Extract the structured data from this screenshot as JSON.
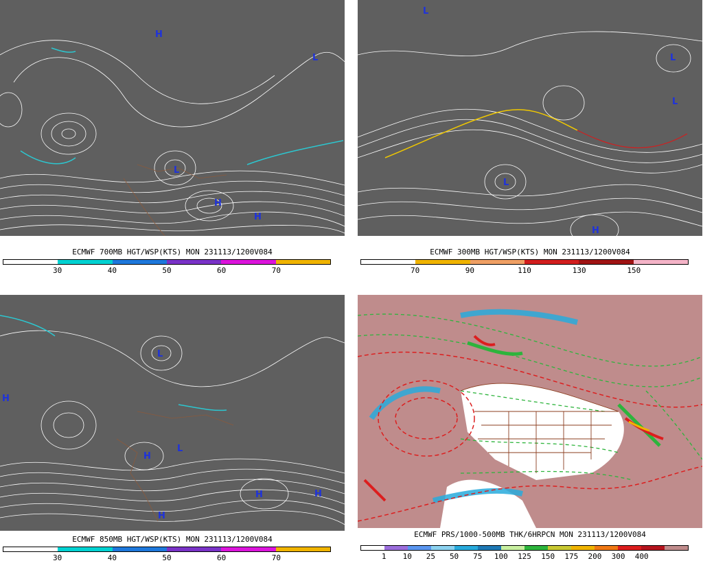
{
  "panels": [
    {
      "id": "700mb",
      "title": "ECMWF 700MB HGT/WSP(KTS) MON 231113/1200V084",
      "colorbar": {
        "colors": [
          "#ffffff",
          "#00d2d2",
          "#1e78dc",
          "#7a33c8",
          "#dc14dc",
          "#f0b400"
        ],
        "labels": [
          "30",
          "40",
          "50",
          "60",
          "70"
        ]
      }
    },
    {
      "id": "300mb",
      "title": "ECMWF 300MB HGT/WSP(KTS) MON 231113/1200V084",
      "colorbar": {
        "colors": [
          "#ffffff",
          "#f0b400",
          "#f0a064",
          "#d21e1e",
          "#a01414",
          "#f5b4c8"
        ],
        "labels": [
          "70",
          "90",
          "110",
          "130",
          "150"
        ]
      }
    },
    {
      "id": "850mb",
      "title": "ECMWF 850MB HGT/WSP(KTS) MON 231113/1200V084",
      "colorbar": {
        "colors": [
          "#ffffff",
          "#00d2d2",
          "#1e78dc",
          "#7a33c8",
          "#dc14dc",
          "#f0b400"
        ],
        "labels": [
          "30",
          "40",
          "50",
          "60",
          "70"
        ]
      }
    },
    {
      "id": "prcp",
      "title": "ECMWF PRS/1000-500MB THK/6HRPCN MON 231113/1200V084",
      "colorbar": {
        "colors": [
          "#ffffff",
          "#9b6edc",
          "#5a96f0",
          "#8cd2f0",
          "#28aadc",
          "#1e78b4",
          "#c8f0a0",
          "#2db43c",
          "#c8c832",
          "#f0b400",
          "#f07814",
          "#dc1e1e",
          "#b4141e",
          "#c08c8c"
        ],
        "labels": [
          "1",
          "10",
          "25",
          "50",
          "75",
          "100",
          "125",
          "150",
          "175",
          "200",
          "300",
          "400"
        ]
      }
    }
  ],
  "map_labels": {
    "high": "H",
    "low": "L"
  }
}
